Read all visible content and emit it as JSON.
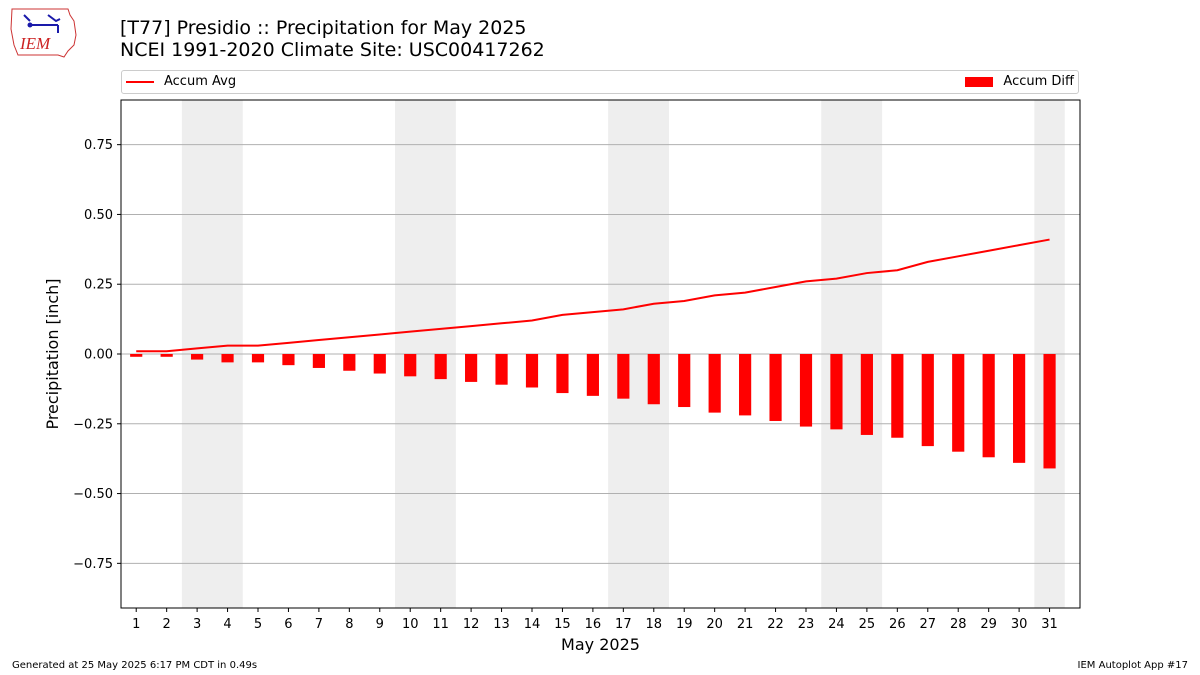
{
  "logo_text": "IEM",
  "title_line1": "[T77] Presidio :: Precipitation for May 2025",
  "title_line2": "NCEI 1991-2020 Climate Site: USC00417262",
  "legend": {
    "left": "Accum Avg",
    "right": "Accum Diff"
  },
  "footer": {
    "left": "Generated at 25 May 2025 6:17 PM CDT in 0.49s",
    "right": "IEM Autoplot App #17"
  },
  "chart_data": {
    "type": "bar",
    "xlabel": "May 2025",
    "ylabel": "Precipitation [inch]",
    "ylim": [
      -0.91,
      0.91
    ],
    "yticks": [
      -0.75,
      -0.5,
      -0.25,
      0.0,
      0.25,
      0.5,
      0.75
    ],
    "ytick_labels": [
      "−0.75",
      "−0.50",
      "−0.25",
      "0.00",
      "0.25",
      "0.50",
      "0.75"
    ],
    "categories": [
      "1",
      "2",
      "3",
      "4",
      "5",
      "6",
      "7",
      "8",
      "9",
      "10",
      "11",
      "12",
      "13",
      "14",
      "15",
      "16",
      "17",
      "18",
      "19",
      "20",
      "21",
      "22",
      "23",
      "24",
      "25",
      "26",
      "27",
      "28",
      "29",
      "30",
      "31"
    ],
    "weekend_shading": [
      [
        3,
        4
      ],
      [
        10,
        11
      ],
      [
        17,
        18
      ],
      [
        24,
        25
      ],
      [
        31,
        31
      ]
    ],
    "grid": true,
    "series": [
      {
        "name": "Accum Avg",
        "kind": "line",
        "color": "#ff0000",
        "values": [
          0.01,
          0.01,
          0.02,
          0.03,
          0.03,
          0.04,
          0.05,
          0.06,
          0.07,
          0.08,
          0.09,
          0.1,
          0.11,
          0.12,
          0.14,
          0.15,
          0.16,
          0.18,
          0.19,
          0.21,
          0.22,
          0.24,
          0.26,
          0.27,
          0.29,
          0.3,
          0.33,
          0.35,
          0.37,
          0.39,
          0.41
        ]
      },
      {
        "name": "Accum Diff",
        "kind": "bar",
        "color": "#ff0000",
        "values": [
          -0.01,
          -0.01,
          -0.02,
          -0.03,
          -0.03,
          -0.04,
          -0.05,
          -0.06,
          -0.07,
          -0.08,
          -0.09,
          -0.1,
          -0.11,
          -0.12,
          -0.14,
          -0.15,
          -0.16,
          -0.18,
          -0.19,
          -0.21,
          -0.22,
          -0.24,
          -0.26,
          -0.27,
          -0.29,
          -0.3,
          -0.33,
          -0.35,
          -0.37,
          -0.39,
          -0.41
        ]
      }
    ]
  }
}
